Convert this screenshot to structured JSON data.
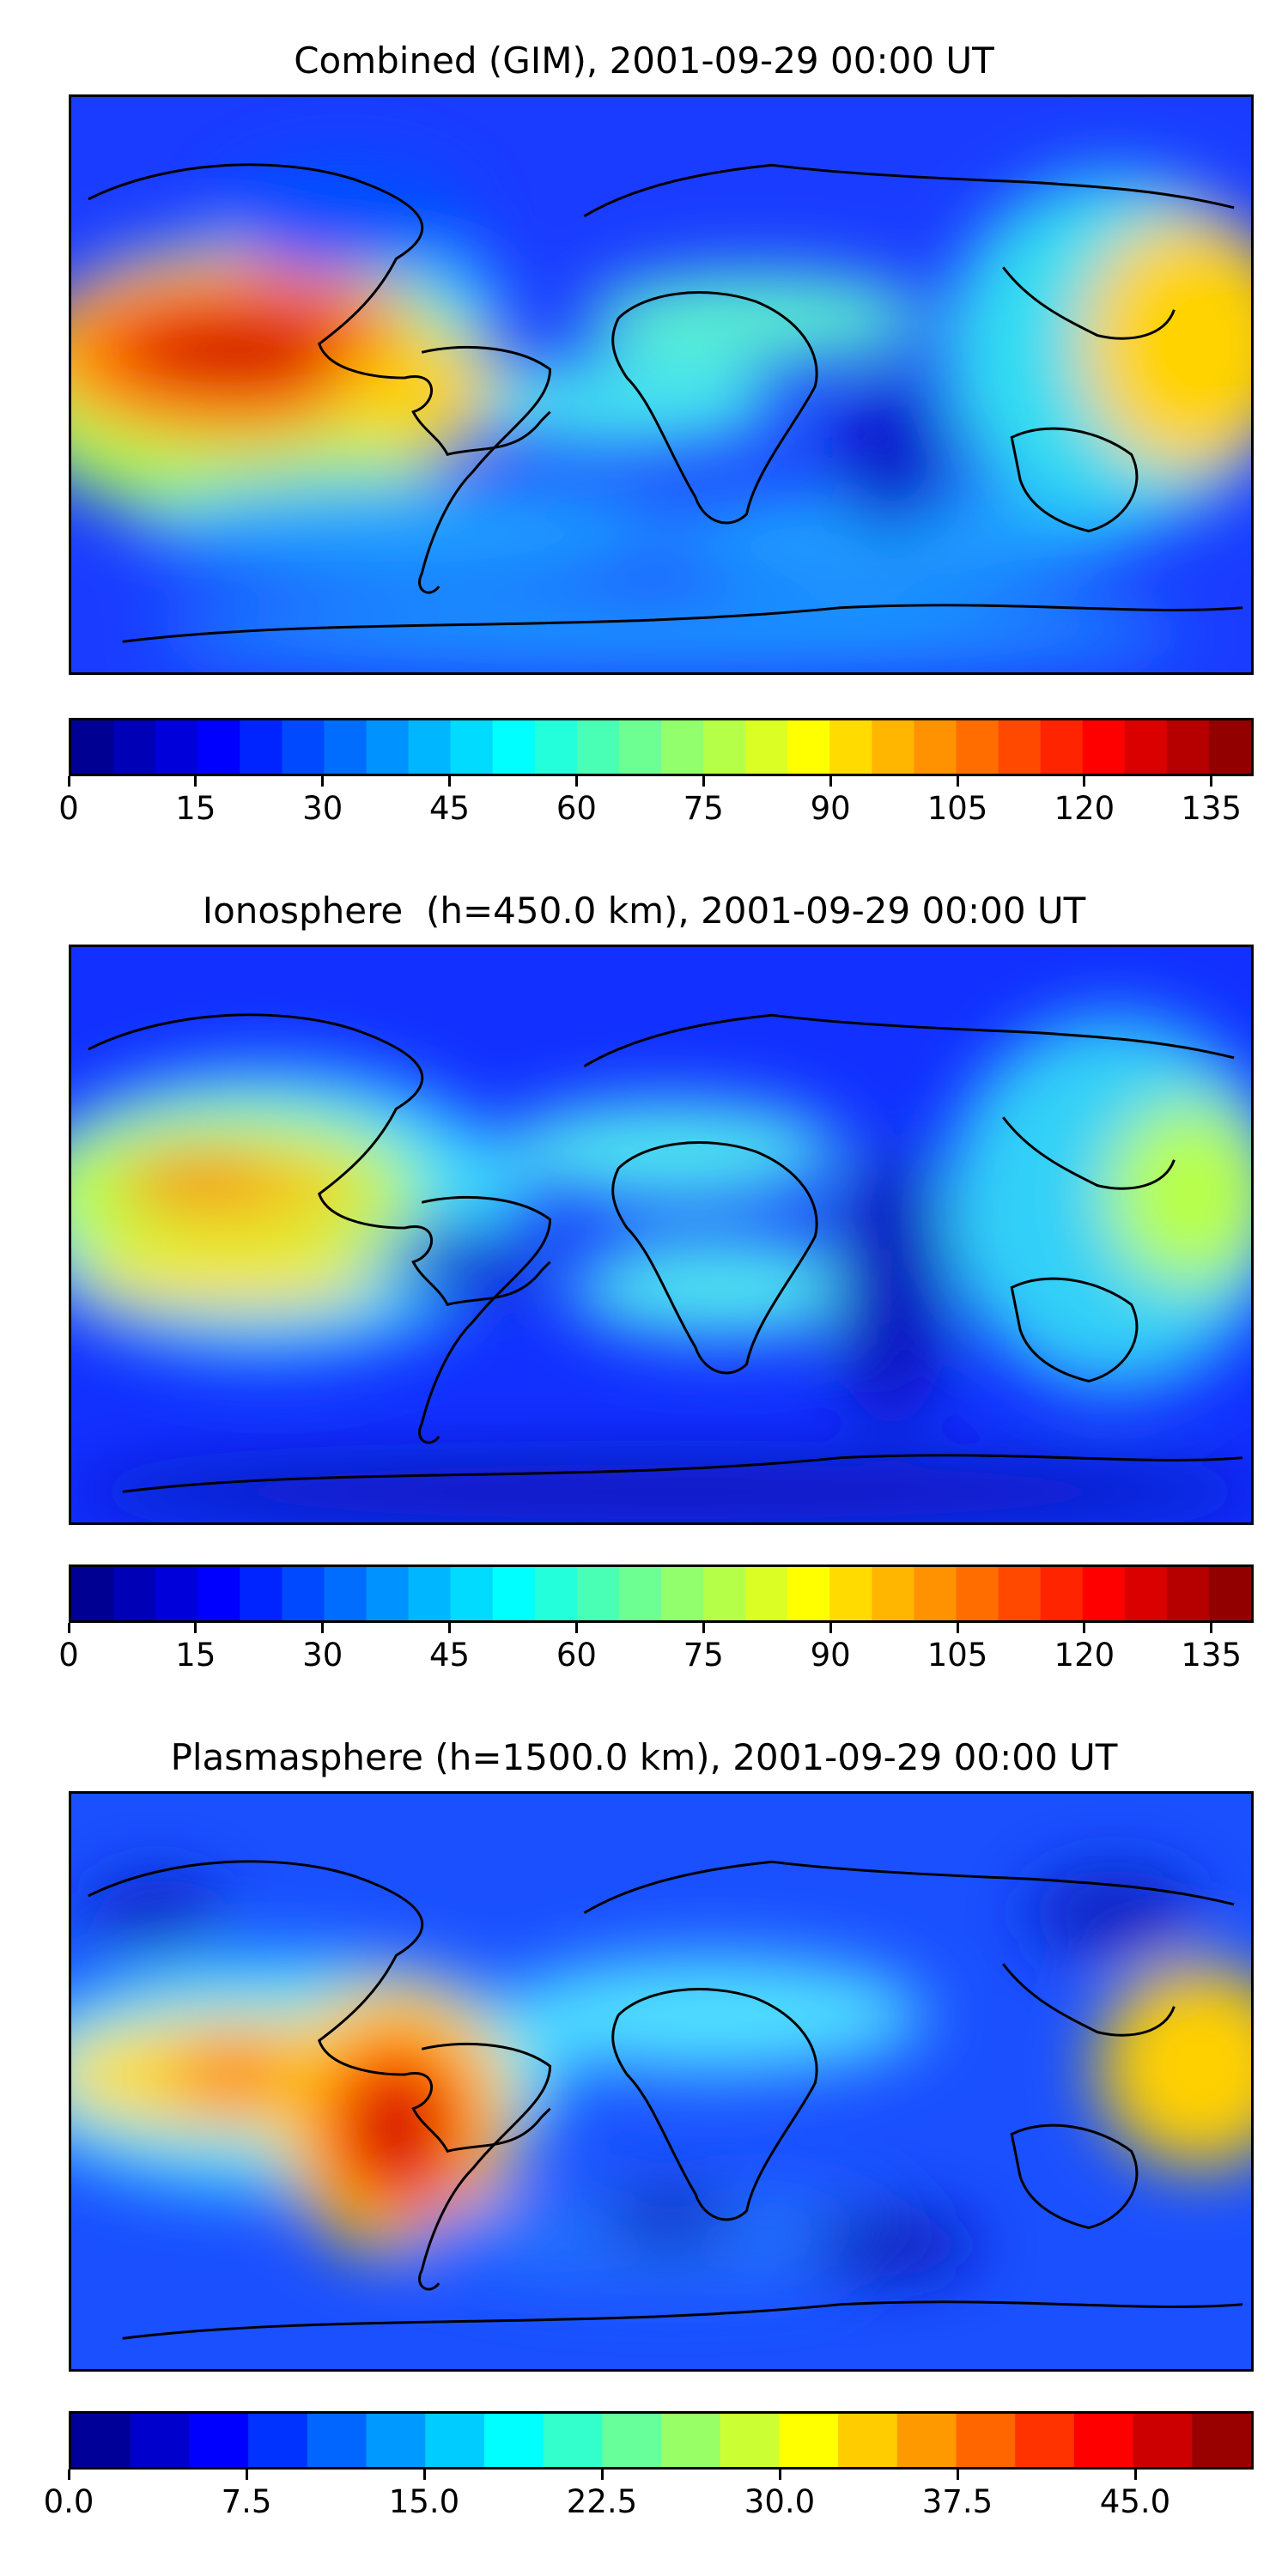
{
  "panels": [
    {
      "title": "Combined (GIM), 2001-09-29 00:00 UT",
      "colorbar": {
        "vmin": 0,
        "vmax": 140,
        "levels": 28,
        "ticks": [
          "0",
          "15",
          "30",
          "45",
          "60",
          "75",
          "90",
          "105",
          "120",
          "135"
        ],
        "tick_values": [
          0,
          15,
          30,
          45,
          60,
          75,
          90,
          105,
          120,
          135
        ]
      },
      "colormap": "jet"
    },
    {
      "title": "Ionosphere  (h=450.0 km), 2001-09-29 00:00 UT",
      "colorbar": {
        "vmin": 0,
        "vmax": 140,
        "levels": 28,
        "ticks": [
          "0",
          "15",
          "30",
          "45",
          "60",
          "75",
          "90",
          "105",
          "120",
          "135"
        ],
        "tick_values": [
          0,
          15,
          30,
          45,
          60,
          75,
          90,
          105,
          120,
          135
        ]
      },
      "colormap": "jet"
    },
    {
      "title": "Plasmasphere (h=1500.0 km), 2001-09-29 00:00 UT",
      "colorbar": {
        "vmin": 0,
        "vmax": 50,
        "levels": 20,
        "ticks": [
          "0.0",
          "7.5",
          "15.0",
          "22.5",
          "30.0",
          "37.5",
          "45.0"
        ],
        "tick_values": [
          0,
          7.5,
          15,
          22.5,
          30,
          37.5,
          45
        ]
      },
      "colormap": "jet"
    }
  ]
}
